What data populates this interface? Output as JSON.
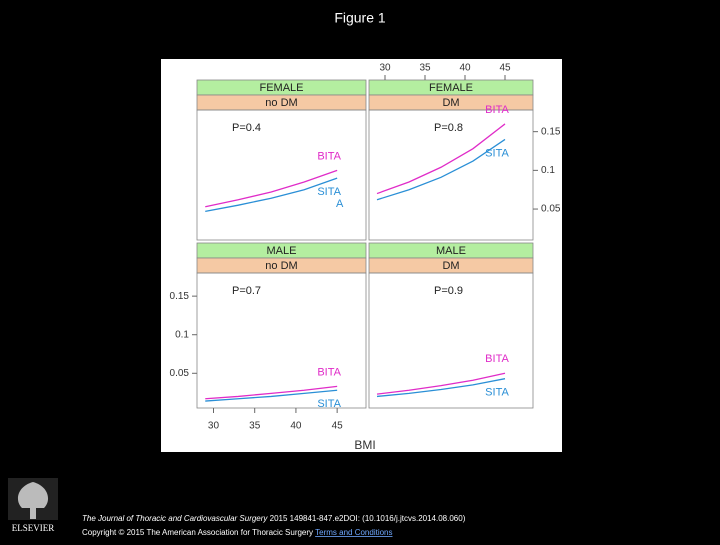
{
  "title": "Figure 1",
  "chart_data": [
    {
      "type": "line",
      "strips": [
        "FEMALE",
        "no DM"
      ],
      "annotation": "P=0.4",
      "extra_label": "A",
      "x": [
        29,
        33,
        37,
        41,
        45
      ],
      "xlim": [
        28,
        48.5
      ],
      "ylim": [
        0.01,
        0.178
      ],
      "series": [
        {
          "name": "BITA",
          "color": "#e02cc8",
          "values": [
            0.053,
            0.062,
            0.072,
            0.085,
            0.1
          ]
        },
        {
          "name": "SITA",
          "color": "#2a8fd6",
          "values": [
            0.047,
            0.055,
            0.064,
            0.075,
            0.09
          ]
        }
      ]
    },
    {
      "type": "line",
      "strips": [
        "FEMALE",
        "DM"
      ],
      "annotation": "P=0.8",
      "x": [
        29,
        33,
        37,
        41,
        45
      ],
      "xlim": [
        28,
        48.5
      ],
      "ylim": [
        0.01,
        0.178
      ],
      "xticks": [
        30,
        35,
        40,
        45
      ],
      "yticks": [
        0.05,
        0.1,
        0.15
      ],
      "series": [
        {
          "name": "BITA",
          "color": "#e02cc8",
          "values": [
            0.07,
            0.085,
            0.104,
            0.128,
            0.16
          ]
        },
        {
          "name": "SITA",
          "color": "#2a8fd6",
          "values": [
            0.062,
            0.075,
            0.091,
            0.112,
            0.14
          ]
        }
      ]
    },
    {
      "type": "line",
      "strips": [
        "MALE",
        "no DM"
      ],
      "annotation": "P=0.7",
      "x_label": "BMI",
      "x": [
        29,
        33,
        37,
        41,
        45
      ],
      "xlim": [
        28,
        48.5
      ],
      "ylim": [
        0.005,
        0.18
      ],
      "xticks": [
        30,
        35,
        40,
        45
      ],
      "yticks": [
        0.05,
        0.1,
        0.15
      ],
      "series": [
        {
          "name": "BITA",
          "color": "#e02cc8",
          "values": [
            0.017,
            0.02,
            0.024,
            0.028,
            0.033
          ]
        },
        {
          "name": "SITA",
          "color": "#2a8fd6",
          "values": [
            0.014,
            0.017,
            0.02,
            0.024,
            0.028
          ]
        }
      ]
    },
    {
      "type": "line",
      "strips": [
        "MALE",
        "DM"
      ],
      "annotation": "P=0.9",
      "x": [
        29,
        33,
        37,
        41,
        45
      ],
      "xlim": [
        28,
        48.5
      ],
      "ylim": [
        0.005,
        0.18
      ],
      "series": [
        {
          "name": "BITA",
          "color": "#e02cc8",
          "values": [
            0.023,
            0.028,
            0.034,
            0.041,
            0.05
          ]
        },
        {
          "name": "SITA",
          "color": "#2a8fd6",
          "values": [
            0.02,
            0.024,
            0.029,
            0.035,
            0.043
          ]
        }
      ]
    }
  ],
  "footer": {
    "journal": "The Journal of Thoracic and Cardiovascular Surgery",
    "citation": "2015 149841-847.e2DOI: (10.1016/j.jtcvs.2014.08.060)",
    "copyright": "Copyright © 2015 The American Association for Thoracic Surgery",
    "link": "Terms and Conditions",
    "logo": "ELSEVIER"
  }
}
